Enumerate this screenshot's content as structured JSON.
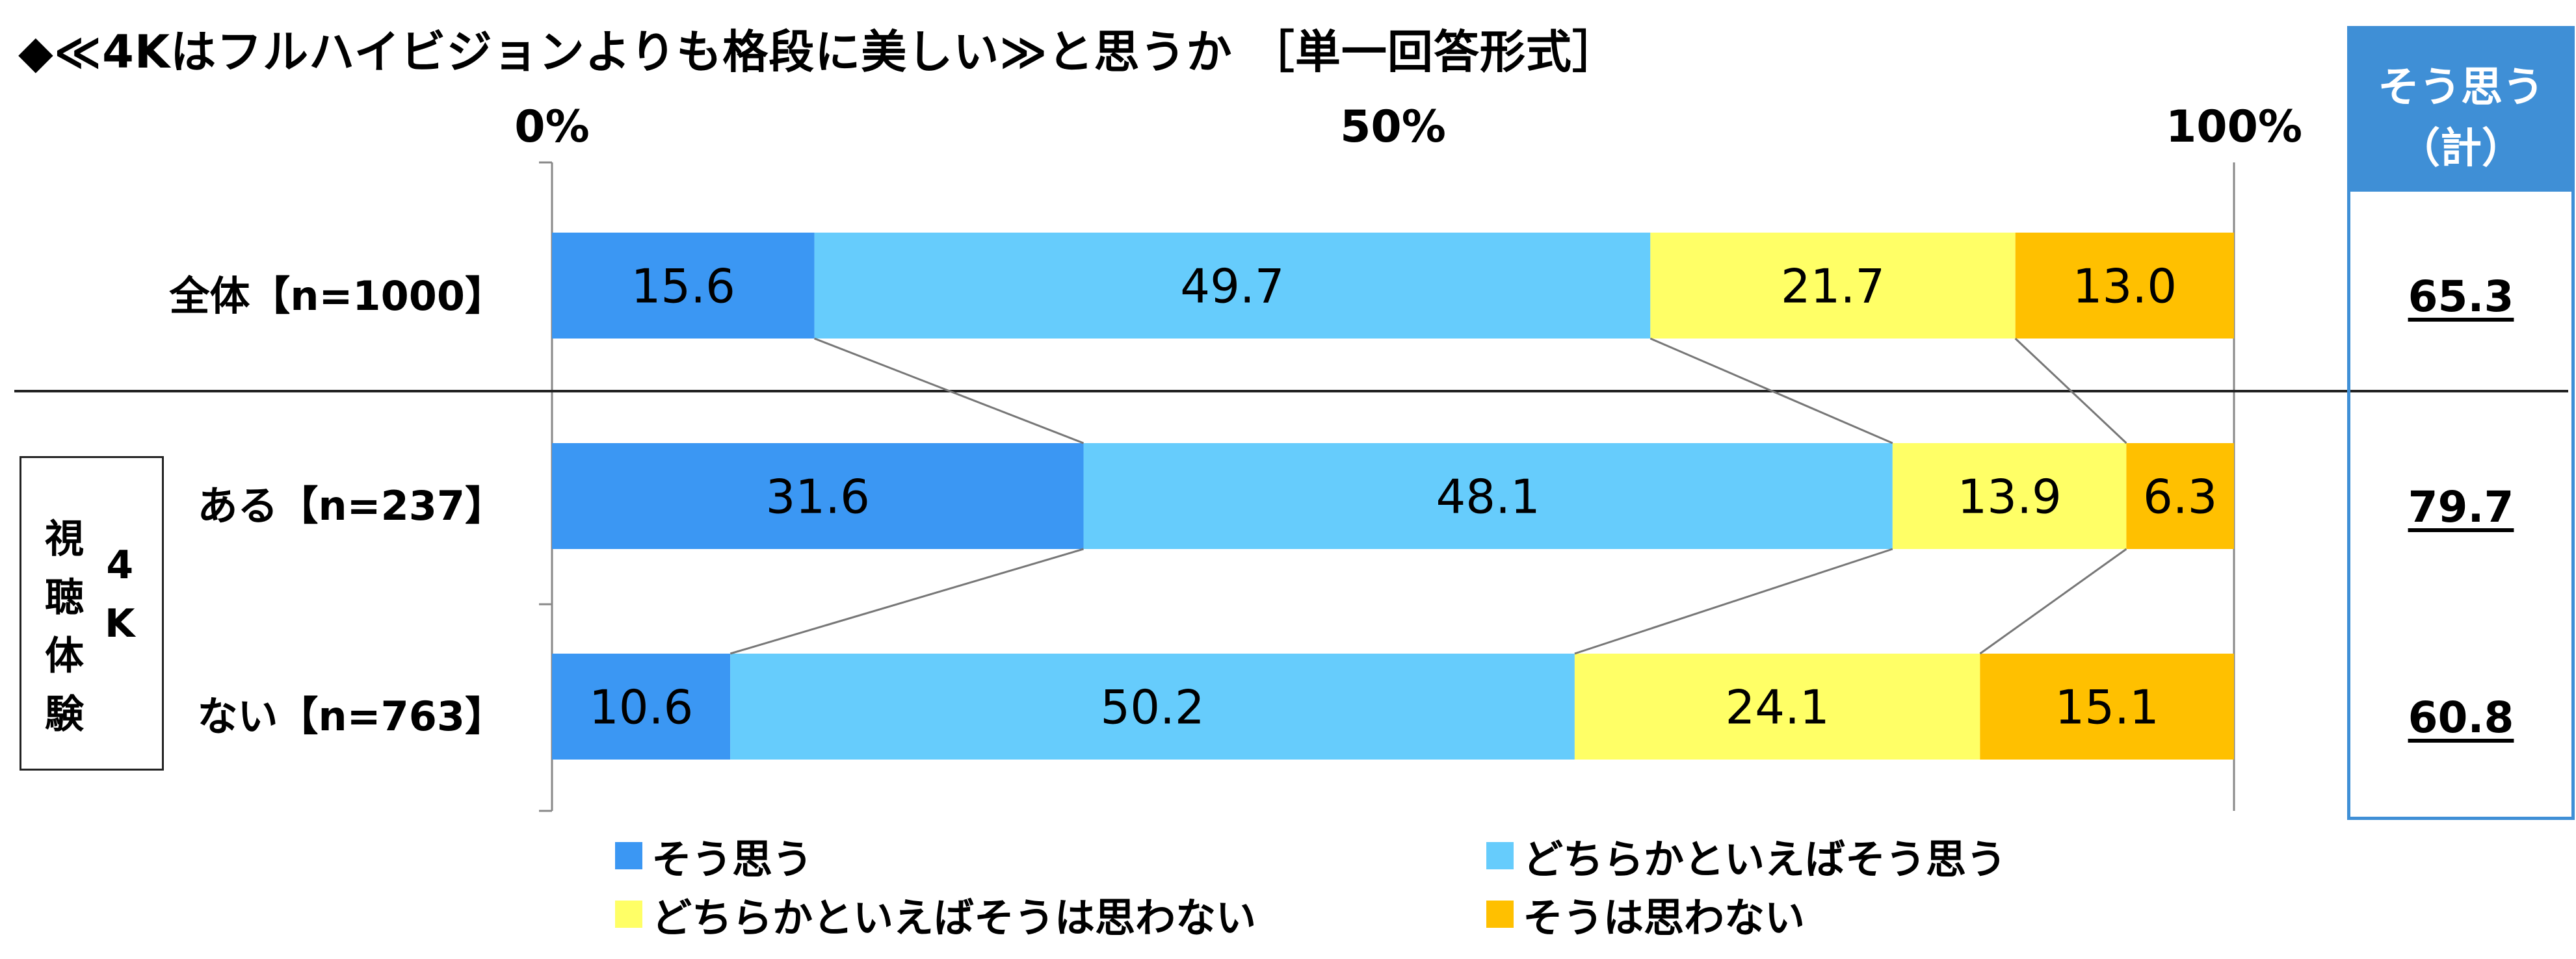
{
  "title": "◆≪4Kはフルハイビジョンよりも格段に美しい≫と思うか ［単一回答形式］",
  "group_label": {
    "col_a": [
      "視",
      "聴",
      "体",
      "験"
    ],
    "col_b": [
      "4",
      "K"
    ]
  },
  "total_panel": {
    "header_line1": "そう思う",
    "header_line2": "（計）",
    "values": [
      "65.3",
      "79.7",
      "60.8"
    ]
  },
  "chart_data": {
    "type": "bar",
    "orientation": "horizontal",
    "stacked": true,
    "percent_scale": true,
    "xlim": [
      0,
      100
    ],
    "tick_labels": [
      "0%",
      "50%",
      "100%"
    ],
    "categories": [
      "全体【n=1000】",
      "ある【n=237】",
      "ない【n=763】"
    ],
    "series": [
      {
        "name": "そう思う",
        "color": "#3b97f3",
        "values": [
          15.6,
          31.6,
          10.6
        ]
      },
      {
        "name": "どちらかといえばそう思う",
        "color": "#66ccfc",
        "values": [
          49.7,
          48.1,
          50.2
        ]
      },
      {
        "name": "どちらかといえばそうは思わない",
        "color": "#ffff66",
        "values": [
          21.7,
          13.9,
          24.1
        ]
      },
      {
        "name": "そうは思わない",
        "color": "#ffc000",
        "values": [
          13.0,
          6.3,
          15.1
        ]
      }
    ],
    "legend_position": "bottom",
    "grid": false
  }
}
